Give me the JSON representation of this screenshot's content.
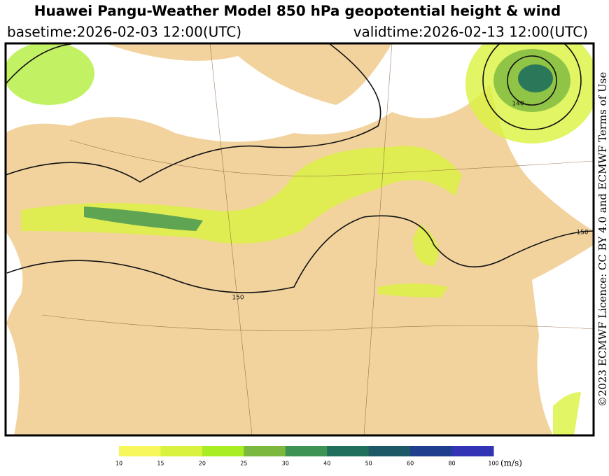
{
  "header": {
    "title": "Huawei Pangu-Weather Model 850 hPa geopotential height & wind",
    "basetime": "basetime:2026-02-03 12:00(UTC)",
    "validtime": "validtime:2026-02-13 12:00(UTC)"
  },
  "map": {
    "contour_labels": [
      "150",
      "150",
      "140"
    ]
  },
  "side_note": "©2023 ECMWF Licence: CC BY 4.0 and ECMWF Terms of Use",
  "colorbar": {
    "ticks": [
      10,
      15,
      20,
      25,
      30,
      40,
      50,
      60,
      80,
      100
    ],
    "colors": [
      "#f7f75c",
      "#d9f23e",
      "#a8ec22",
      "#7cb83e",
      "#3e9254",
      "#1f6f5c",
      "#1d5866",
      "#1f3f8e",
      "#3333b5"
    ],
    "unit": "(m/s)"
  }
}
